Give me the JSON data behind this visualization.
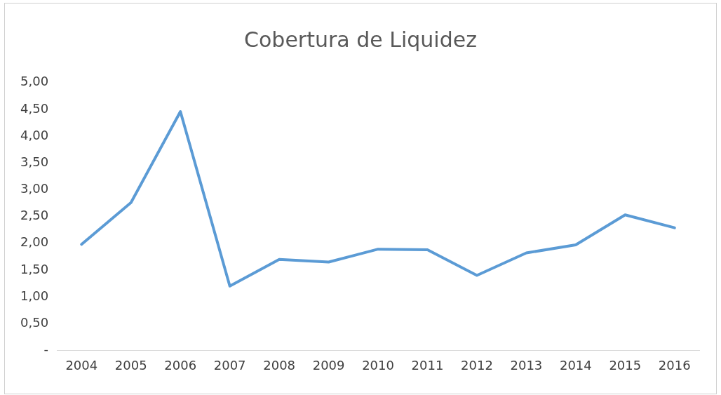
{
  "chart_data": {
    "type": "line",
    "title": "Cobertura de Liquidez",
    "categories": [
      "2004",
      "2005",
      "2006",
      "2007",
      "2008",
      "2009",
      "2010",
      "2011",
      "2012",
      "2013",
      "2014",
      "2015",
      "2016"
    ],
    "series": [
      {
        "color": "#5b9bd5",
        "values": [
          1.98,
          2.76,
          4.46,
          1.2,
          1.7,
          1.65,
          1.89,
          1.88,
          1.4,
          1.82,
          1.97,
          2.53,
          2.29
        ]
      }
    ],
    "ylim": [
      0,
      5
    ],
    "yticks": [
      {
        "value": 0,
        "label": "-"
      },
      {
        "value": 0.5,
        "label": "0,50"
      },
      {
        "value": 1,
        "label": "1,00"
      },
      {
        "value": 1.5,
        "label": "1,50"
      },
      {
        "value": 2,
        "label": "2,00"
      },
      {
        "value": 2.5,
        "label": "2,50"
      },
      {
        "value": 3,
        "label": "3,00"
      },
      {
        "value": 3.5,
        "label": "3,50"
      },
      {
        "value": 4,
        "label": "4,00"
      },
      {
        "value": 4.5,
        "label": "4,50"
      },
      {
        "value": 5,
        "label": "5,00"
      }
    ],
    "grid": false,
    "legend": false,
    "marker": "none",
    "line_style": "solid"
  }
}
